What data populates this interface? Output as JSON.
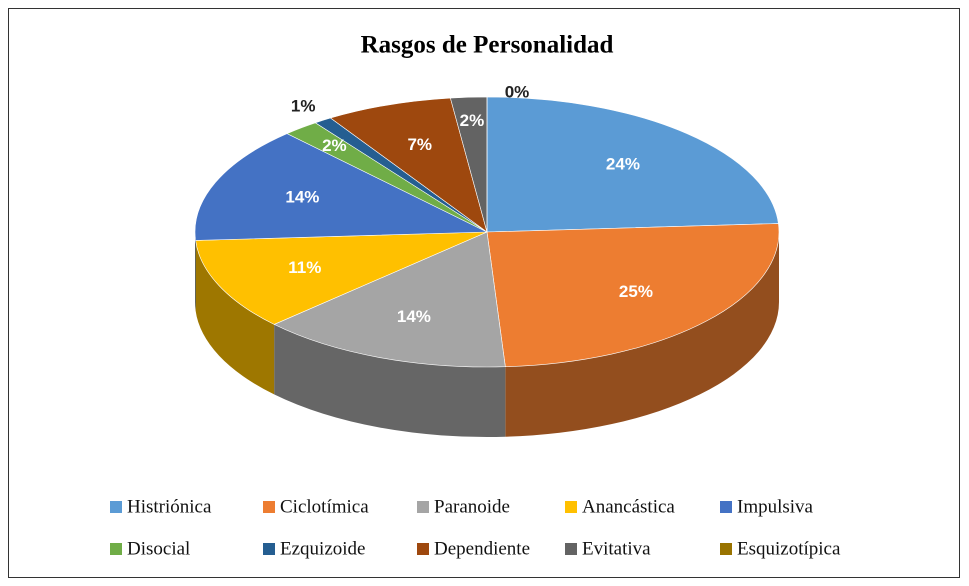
{
  "chart_data": {
    "type": "pie3d",
    "title": "Rasgos de Personalidad",
    "categories": [
      "Histriónica",
      "Ciclotímica",
      "Paranoide",
      "Anancástica",
      "Impulsiva",
      "Disocial",
      "Ezquizoide",
      "Dependiente",
      "Evitativa",
      "Esquizotípica"
    ],
    "values": [
      24,
      25,
      14,
      11,
      14,
      2,
      1,
      7,
      2,
      0
    ],
    "value_labels": [
      "24%",
      "25%",
      "14%",
      "11%",
      "14%",
      "2%",
      "1%",
      "7%",
      "2%",
      "0%"
    ],
    "colors": [
      "#5b9bd5",
      "#ed7d31",
      "#a5a5a5",
      "#ffc000",
      "#4472c4",
      "#70ad47",
      "#255e91",
      "#9e480e",
      "#636363",
      "#997300"
    ],
    "legend": "bottom"
  }
}
